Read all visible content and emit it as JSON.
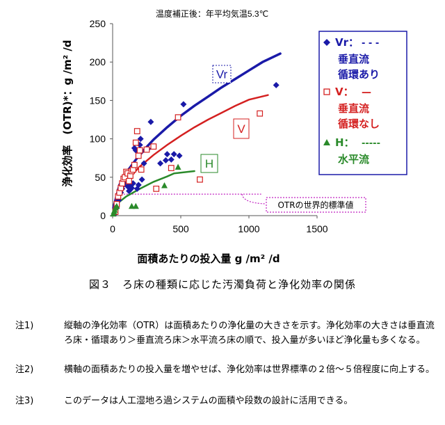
{
  "chart_data": {
    "type": "scatter",
    "title": "温度補正後：年平均気温5.3℃",
    "xlabel": "面積あたりの投入量 g /m² /d",
    "ylabel": "浄化効率　(OTR)*：g /m² /d",
    "xlim": [
      0,
      1500
    ],
    "ylim": [
      0,
      250
    ],
    "x_ticks": [
      "0",
      "500",
      "1000",
      "1500"
    ],
    "y_ticks": [
      "0",
      "50",
      "100",
      "150",
      "200",
      "250"
    ],
    "grid": false,
    "legend_position": "right",
    "legend": [
      {
        "marker": "Vr：",
        "line": "- - -",
        "text": [
          "垂直流",
          "循環あり"
        ]
      },
      {
        "marker": "V：",
        "line": "—",
        "text": [
          "垂直流",
          "循環なし"
        ]
      },
      {
        "marker": "H：",
        "line": "-----",
        "text": [
          "水平流"
        ]
      }
    ],
    "series": [
      {
        "key": "Vr",
        "label": "Vr",
        "color": "#1a1aa8",
        "marker": "diamond",
        "points": [
          [
            20,
            3
          ],
          [
            30,
            10
          ],
          [
            45,
            20
          ],
          [
            60,
            30
          ],
          [
            70,
            35
          ],
          [
            80,
            40
          ],
          [
            90,
            43
          ],
          [
            100,
            45
          ],
          [
            110,
            38
          ],
          [
            120,
            32
          ],
          [
            125,
            40
          ],
          [
            130,
            34
          ],
          [
            140,
            36
          ],
          [
            150,
            42
          ],
          [
            160,
            88
          ],
          [
            170,
            85
          ],
          [
            175,
            95
          ],
          [
            180,
            35
          ],
          [
            190,
            40
          ],
          [
            200,
            92
          ],
          [
            205,
            100
          ],
          [
            210,
            83
          ],
          [
            215,
            47
          ],
          [
            230,
            68
          ],
          [
            260,
            87
          ],
          [
            280,
            122
          ],
          [
            350,
            68
          ],
          [
            390,
            72
          ],
          [
            400,
            80
          ],
          [
            430,
            73
          ],
          [
            450,
            80
          ],
          [
            490,
            78
          ],
          [
            520,
            145
          ],
          [
            1200,
            170
          ]
        ],
        "curve": [
          [
            5,
            10
          ],
          [
            50,
            40
          ],
          [
            100,
            56
          ],
          [
            200,
            80
          ],
          [
            300,
            99
          ],
          [
            400,
            115
          ],
          [
            500,
            130
          ],
          [
            600,
            143
          ],
          [
            700,
            155
          ],
          [
            800,
            167
          ],
          [
            900,
            178
          ],
          [
            1000,
            189
          ],
          [
            1100,
            200
          ],
          [
            1230,
            211
          ]
        ]
      },
      {
        "key": "V",
        "label": "V",
        "color": "#d42020",
        "marker": "square-open",
        "points": [
          [
            20,
            5
          ],
          [
            30,
            15
          ],
          [
            40,
            25
          ],
          [
            50,
            30
          ],
          [
            60,
            36
          ],
          [
            70,
            42
          ],
          [
            80,
            48
          ],
          [
            90,
            50
          ],
          [
            100,
            57
          ],
          [
            110,
            55
          ],
          [
            120,
            45
          ],
          [
            130,
            52
          ],
          [
            140,
            58
          ],
          [
            150,
            60
          ],
          [
            160,
            66
          ],
          [
            170,
            95
          ],
          [
            180,
            110
          ],
          [
            190,
            78
          ],
          [
            200,
            85
          ],
          [
            210,
            60
          ],
          [
            250,
            86
          ],
          [
            300,
            90
          ],
          [
            320,
            35
          ],
          [
            430,
            62
          ],
          [
            480,
            128
          ],
          [
            640,
            47
          ],
          [
            1080,
            133
          ]
        ],
        "curve": [
          [
            5,
            8
          ],
          [
            50,
            32
          ],
          [
            100,
            45
          ],
          [
            200,
            64
          ],
          [
            300,
            79
          ],
          [
            400,
            92
          ],
          [
            500,
            104
          ],
          [
            600,
            115
          ],
          [
            700,
            125
          ],
          [
            800,
            134
          ],
          [
            900,
            143
          ],
          [
            1000,
            151
          ],
          [
            1140,
            157
          ]
        ]
      },
      {
        "key": "H",
        "label": "H",
        "color": "#2a8a2a",
        "marker": "triangle",
        "points": [
          [
            5,
            2
          ],
          [
            10,
            5
          ],
          [
            15,
            7
          ],
          [
            20,
            10
          ],
          [
            30,
            12
          ],
          [
            140,
            12
          ],
          [
            170,
            12
          ],
          [
            380,
            39
          ],
          [
            480,
            63
          ]
        ],
        "curve": [
          [
            5,
            5
          ],
          [
            50,
            18
          ],
          [
            100,
            25
          ],
          [
            200,
            35
          ],
          [
            300,
            44
          ],
          [
            400,
            51
          ],
          [
            450,
            55
          ],
          [
            600,
            58
          ]
        ]
      }
    ],
    "annotations": [
      {
        "text": "Vr",
        "color": "#1a1aa8"
      },
      {
        "text": "V",
        "color": "#d42020"
      },
      {
        "text": "H",
        "color": "#2a8a2a"
      },
      {
        "text": "OTRの世界的標準値",
        "color": "#c020c0",
        "x": [
          40,
          1090
        ],
        "y": 28
      }
    ]
  },
  "caption": "図３　ろ床の種類に応じた汚濁負荷と浄化効率の関係",
  "notes": [
    {
      "label": "注1)",
      "text": "縦軸の浄化効率（OTR）は面積あたりの浄化量の大きさを示す。浄化効率の大きさは垂直流ろ床・循環あり＞垂直流ろ床＞水平流ろ床の順で、投入量が多いほど浄化量も多くなる。"
    },
    {
      "label": "注2)",
      "text": "横軸の面積あたりの投入量を増やせば、浄化効率は世界標準の２倍～５倍程度に向上する。"
    },
    {
      "label": "注3)",
      "text": "このデータは人工湿地ろ過システムの面積や段数の設計に活用できる。"
    }
  ]
}
